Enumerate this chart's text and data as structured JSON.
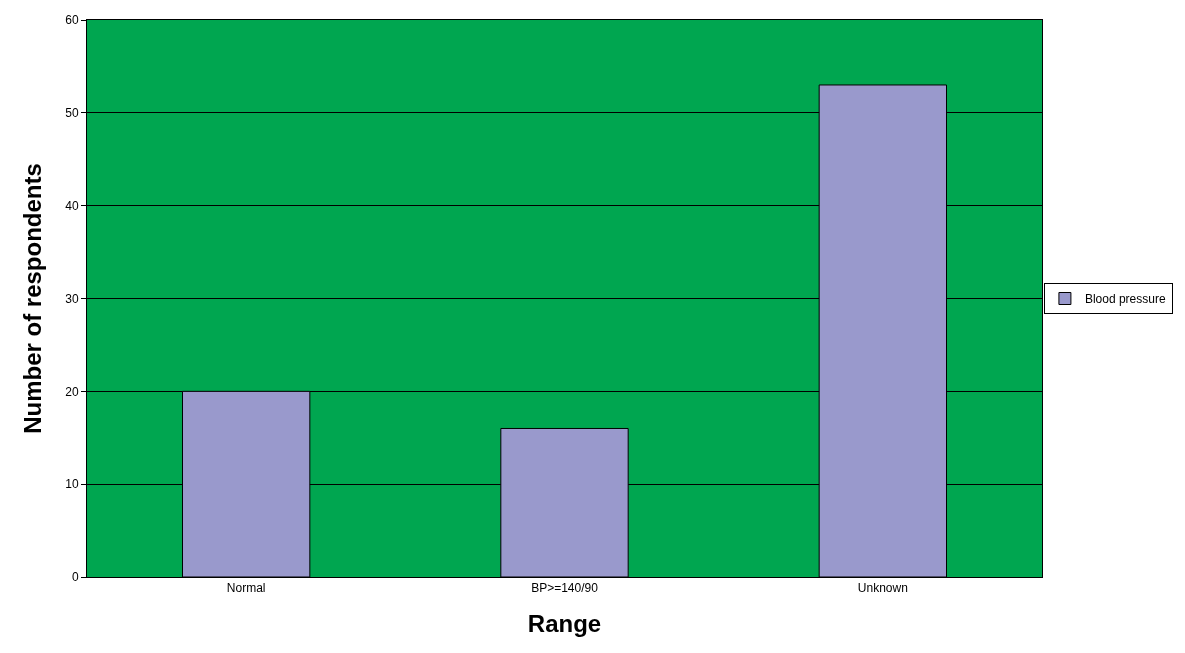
{
  "chart_data": {
    "type": "bar",
    "xlabel": "Range",
    "ylabel": "Number of respondents",
    "categories": [
      "Normal",
      "BP>=140/90",
      "Unknown"
    ],
    "series": [
      {
        "name": "Blood pressure",
        "color": "#9999cc",
        "values": [
          20,
          16,
          53
        ]
      }
    ],
    "ylim": [
      0,
      60
    ],
    "yticks": [
      0,
      10,
      20,
      30,
      40,
      50,
      60
    ],
    "grid": "y",
    "legend": "right"
  }
}
